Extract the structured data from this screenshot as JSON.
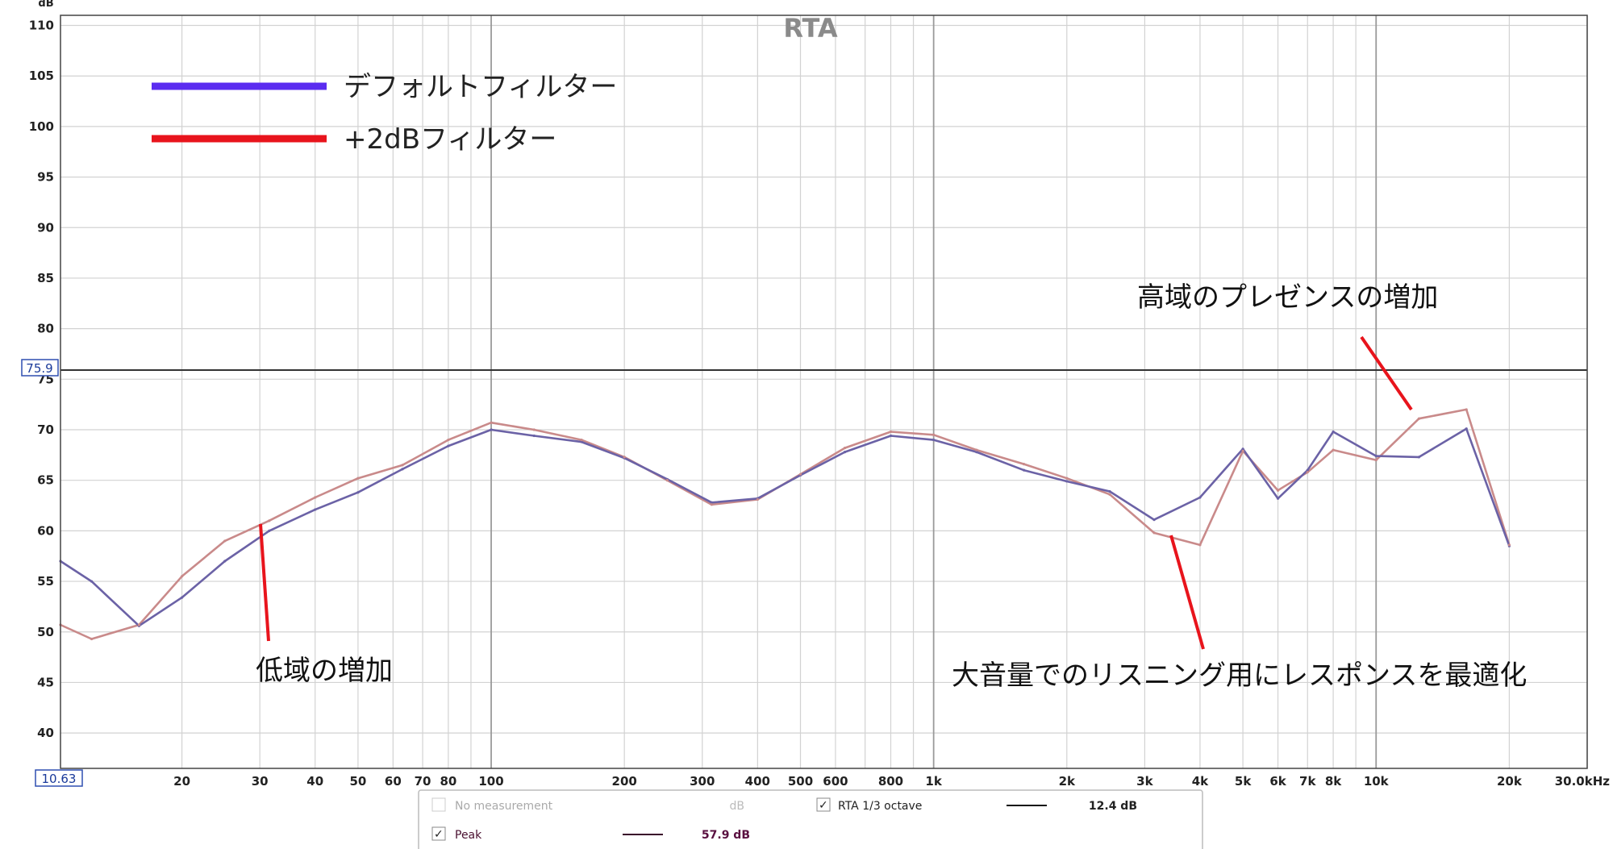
{
  "chart_data": {
    "type": "line",
    "title": "RTA",
    "ylabel": "dB",
    "xlabel": "",
    "x_scale": "log",
    "xlim": [
      10.63,
      30000
    ],
    "ylim": [
      36.5,
      111
    ],
    "grid": true,
    "y_ticks": [
      40,
      45,
      50,
      55,
      60,
      65,
      70,
      75,
      80,
      85,
      90,
      95,
      100,
      105,
      110
    ],
    "x_tick_labels": [
      {
        "v": 20,
        "t": "20"
      },
      {
        "v": 30,
        "t": "30"
      },
      {
        "v": 40,
        "t": "40"
      },
      {
        "v": 50,
        "t": "50"
      },
      {
        "v": 60,
        "t": "60"
      },
      {
        "v": 70,
        "t": "70"
      },
      {
        "v": 80,
        "t": "80"
      },
      {
        "v": 100,
        "t": "100"
      },
      {
        "v": 200,
        "t": "200"
      },
      {
        "v": 300,
        "t": "300"
      },
      {
        "v": 400,
        "t": "400"
      },
      {
        "v": 500,
        "t": "500"
      },
      {
        "v": 600,
        "t": "600"
      },
      {
        "v": 800,
        "t": "800"
      },
      {
        "v": 1000,
        "t": "1k"
      },
      {
        "v": 2000,
        "t": "2k"
      },
      {
        "v": 3000,
        "t": "3k"
      },
      {
        "v": 4000,
        "t": "4k"
      },
      {
        "v": 5000,
        "t": "5k"
      },
      {
        "v": 6000,
        "t": "6k"
      },
      {
        "v": 7000,
        "t": "7k"
      },
      {
        "v": 8000,
        "t": "8k"
      },
      {
        "v": 10000,
        "t": "10k"
      },
      {
        "v": 20000,
        "t": "20k"
      },
      {
        "v": 30000,
        "t": "30.0kHz"
      }
    ],
    "x_min_label": "10.63",
    "cursor": {
      "y": 75.9,
      "label": "75.9"
    },
    "legend_position": "top-left",
    "series": [
      {
        "name": "デフォルトフィルター",
        "legend_color": "#5b2cf0",
        "color": "#6b62a6",
        "x": [
          10.63,
          12.5,
          16,
          20,
          25,
          31.5,
          40,
          50,
          63,
          80,
          100,
          125,
          160,
          200,
          250,
          315,
          400,
          500,
          630,
          800,
          1000,
          1250,
          1600,
          2000,
          2500,
          3150,
          4000,
          5000,
          6000,
          7000,
          8000,
          10000,
          12500,
          16000,
          20000
        ],
        "y": [
          57.0,
          55.0,
          50.6,
          53.4,
          57.0,
          60.0,
          62.1,
          63.8,
          66.1,
          68.4,
          70.0,
          69.4,
          68.8,
          67.2,
          65.1,
          62.8,
          63.2,
          65.5,
          67.8,
          69.4,
          69.0,
          67.8,
          66.0,
          64.9,
          63.9,
          61.1,
          63.3,
          68.1,
          63.2,
          66.0,
          69.8,
          67.4,
          67.3,
          70.1,
          58.5
        ]
      },
      {
        "name": "+2dBフィルター",
        "legend_color": "#e8141c",
        "color": "#c98a8a",
        "x": [
          10.63,
          12.5,
          16,
          20,
          25,
          31.5,
          40,
          50,
          63,
          80,
          100,
          125,
          160,
          200,
          250,
          315,
          400,
          500,
          630,
          800,
          1000,
          1250,
          1600,
          2000,
          2500,
          3150,
          4000,
          5000,
          6000,
          7000,
          8000,
          10000,
          12500,
          16000,
          20000
        ],
        "y": [
          50.7,
          49.3,
          50.7,
          55.5,
          59.0,
          61.0,
          63.3,
          65.2,
          66.5,
          69.0,
          70.7,
          70.0,
          69.0,
          67.3,
          65.0,
          62.6,
          63.1,
          65.6,
          68.2,
          69.8,
          69.5,
          68.0,
          66.6,
          65.2,
          63.6,
          59.8,
          58.6,
          67.9,
          64.0,
          65.8,
          68.0,
          67.0,
          71.1,
          72.0,
          58.6
        ]
      }
    ],
    "annotations": [
      {
        "text": "低域の増加"
      },
      {
        "text": "大音量でのリスニング用にレスポンスを最適化"
      },
      {
        "text": "高域のプレゼンスの増加"
      }
    ]
  },
  "panel": {
    "row1": {
      "name": "No measurement",
      "unit": "dB",
      "rta": "RTA 1/3 octave",
      "rta_value": "12.4 dB"
    },
    "row2": {
      "name": "Peak",
      "value": "57.9 dB"
    }
  },
  "colors": {
    "grid": "#d2d2d2",
    "grid_major": "#9a9a9a",
    "frame": "#444444",
    "annotation_line": "#e8141c"
  }
}
